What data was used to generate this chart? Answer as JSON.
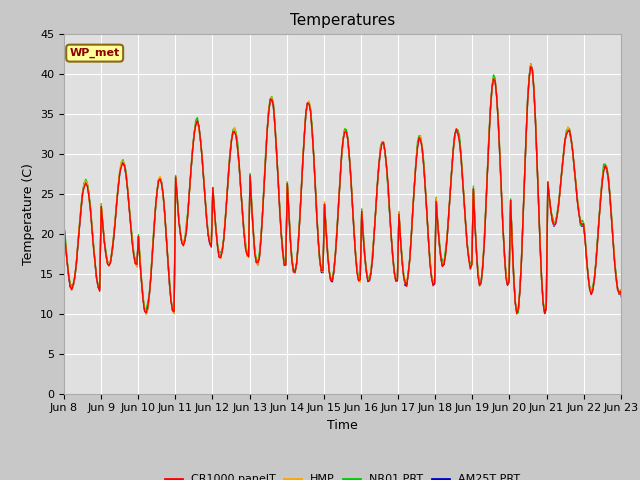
{
  "title": "Temperatures",
  "ylabel": "Temperature (C)",
  "xlabel": "Time",
  "station_label": "WP_met",
  "ylim": [
    0,
    45
  ],
  "yticks": [
    0,
    5,
    10,
    15,
    20,
    25,
    30,
    35,
    40,
    45
  ],
  "xtick_labels": [
    "Jun 8",
    "Jun 9",
    "Jun 10",
    "Jun 11",
    "Jun 12",
    "Jun 13",
    "Jun 14",
    "Jun 15",
    "Jun 16",
    "Jun 17",
    "Jun 18",
    "Jun 19",
    "Jun 20",
    "Jun 21",
    "Jun 22",
    "Jun 23"
  ],
  "xtick_positions": [
    0,
    24,
    48,
    72,
    96,
    120,
    144,
    168,
    192,
    216,
    240,
    264,
    288,
    312,
    336,
    360
  ],
  "series_colors": [
    "#ff0000",
    "#ffa500",
    "#00cc00",
    "#0000cc"
  ],
  "series_labels": [
    "CR1000 panelT",
    "HMP",
    "NR01 PRT",
    "AM25T PRT"
  ],
  "fig_facecolor": "#c8c8c8",
  "plot_bg_color": "#e0e0e0",
  "title_fontsize": 11,
  "axis_fontsize": 9,
  "tick_fontsize": 8,
  "grid_color": "#ffffff",
  "linewidth": 1.0,
  "day_peaks": [
    26.5,
    29.0,
    27.0,
    34.0,
    33.0,
    37.0,
    36.5,
    33.0,
    31.5,
    32.0,
    33.0,
    39.5,
    41.0,
    33.0,
    28.5,
    12.0
  ],
  "day_valleys": [
    13.0,
    16.0,
    10.0,
    18.5,
    17.0,
    16.0,
    15.0,
    14.0,
    14.0,
    13.5,
    16.0,
    13.5,
    10.0,
    21.0,
    12.5,
    11.0
  ],
  "peak_hour": 14,
  "valley_hour": 5
}
